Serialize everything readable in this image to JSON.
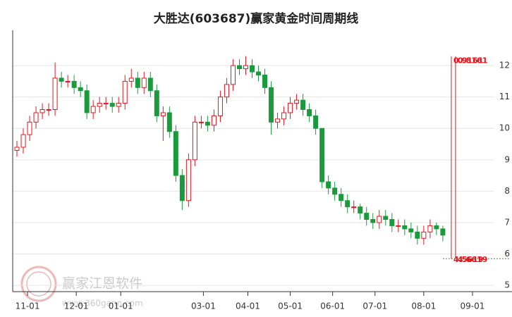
{
  "chart_data": {
    "type": "candlestick",
    "title": "大胜达(603687)赢家黄金时间周期线",
    "x": [
      0,
      3,
      6,
      9,
      12,
      15,
      18,
      21,
      24,
      27,
      30,
      33,
      36,
      39,
      42,
      45,
      48,
      51,
      54,
      57,
      60,
      63,
      66,
      69,
      72,
      75,
      78,
      81,
      84,
      87,
      90,
      93,
      96,
      99,
      102,
      105,
      108,
      111,
      114,
      117,
      120,
      123,
      126,
      129,
      132,
      135,
      138,
      141,
      144,
      147,
      150,
      153,
      156,
      159,
      162,
      165,
      168,
      171,
      174,
      177,
      180,
      183,
      186,
      189,
      192,
      195,
      198,
      201
    ],
    "open": [
      9.3,
      9.4,
      9.8,
      10.2,
      10.5,
      10.6,
      10.6,
      11.6,
      11.5,
      11.5,
      11.3,
      11.2,
      10.5,
      10.7,
      10.8,
      10.8,
      10.7,
      10.8,
      11.5,
      11.6,
      11.3,
      11.6,
      11.2,
      10.4,
      10.5,
      9.9,
      8.5,
      7.7,
      9.0,
      10.2,
      10.2,
      10.1,
      10.4,
      11.0,
      11.4,
      12.0,
      11.9,
      12.0,
      11.8,
      11.7,
      11.3,
      10.2,
      10.3,
      10.5,
      10.8,
      10.9,
      10.6,
      10.4,
      10.0,
      8.3,
      8.1,
      7.9,
      7.7,
      7.5,
      7.5,
      7.3,
      7.1,
      7.0,
      7.2,
      7.1,
      6.9,
      6.9,
      6.8,
      6.7,
      6.5,
      6.7,
      6.9,
      6.8
    ],
    "high": [
      9.6,
      10.0,
      10.4,
      10.7,
      10.8,
      10.8,
      12.1,
      11.8,
      11.7,
      11.7,
      11.5,
      11.4,
      10.9,
      11.0,
      11.0,
      11.0,
      11.0,
      11.7,
      11.9,
      11.8,
      11.8,
      11.8,
      11.4,
      10.7,
      10.7,
      10.1,
      8.7,
      9.2,
      10.4,
      10.4,
      10.4,
      10.6,
      11.2,
      11.6,
      12.2,
      12.2,
      12.3,
      12.2,
      12.0,
      11.9,
      11.5,
      10.5,
      10.7,
      11.0,
      11.1,
      11.1,
      10.8,
      10.6,
      10.0,
      8.5,
      8.3,
      8.1,
      7.9,
      7.7,
      7.6,
      7.5,
      7.3,
      7.4,
      7.4,
      7.3,
      7.1,
      7.1,
      7.0,
      6.9,
      6.9,
      7.1,
      7.0,
      6.9
    ],
    "low": [
      9.1,
      9.2,
      9.6,
      10.0,
      10.3,
      10.4,
      10.4,
      11.3,
      11.3,
      11.1,
      11.0,
      10.3,
      10.3,
      10.5,
      10.6,
      10.5,
      10.5,
      10.6,
      11.3,
      11.1,
      11.1,
      11.0,
      10.2,
      9.6,
      9.7,
      8.3,
      7.4,
      7.5,
      8.8,
      10.0,
      9.9,
      9.9,
      10.2,
      10.8,
      11.2,
      11.7,
      11.7,
      11.6,
      11.5,
      11.1,
      9.8,
      10.0,
      10.1,
      10.3,
      10.6,
      10.4,
      10.2,
      9.8,
      8.1,
      7.9,
      7.7,
      7.5,
      7.3,
      7.3,
      7.1,
      6.9,
      6.8,
      6.8,
      6.9,
      6.7,
      6.7,
      6.6,
      6.5,
      6.3,
      6.3,
      6.5,
      6.6,
      6.4
    ],
    "close": [
      9.4,
      9.8,
      10.2,
      10.5,
      10.6,
      10.6,
      11.6,
      11.5,
      11.5,
      11.3,
      11.2,
      10.5,
      10.7,
      10.8,
      10.8,
      10.7,
      10.8,
      11.5,
      11.6,
      11.3,
      11.6,
      11.2,
      10.4,
      10.5,
      9.9,
      8.5,
      7.7,
      9.0,
      10.2,
      10.2,
      10.1,
      10.4,
      11.0,
      11.4,
      12.0,
      11.9,
      12.0,
      11.8,
      11.7,
      11.3,
      10.2,
      10.3,
      10.5,
      10.8,
      10.9,
      10.6,
      10.4,
      10.0,
      8.3,
      8.1,
      7.9,
      7.7,
      7.5,
      7.5,
      7.3,
      7.1,
      7.0,
      7.2,
      7.1,
      6.9,
      6.9,
      6.8,
      6.7,
      6.5,
      6.7,
      6.9,
      6.8,
      6.6
    ],
    "up_color": "#e8141b",
    "down_color": "#1a9a3c",
    "xlim": [
      -2,
      225
    ],
    "ylim": [
      4.8,
      12.9
    ],
    "xticks": [
      {
        "value": 5,
        "label": "11-01"
      },
      {
        "value": 28,
        "label": "12-01"
      },
      {
        "value": 49,
        "label": "01-01"
      },
      {
        "value": 88,
        "label": "03-01"
      },
      {
        "value": 109,
        "label": "04-01"
      },
      {
        "value": 129,
        "label": "05-01"
      },
      {
        "value": 149,
        "label": "06-01"
      },
      {
        "value": 169,
        "label": "07-01"
      },
      {
        "value": 192,
        "label": "08-01"
      },
      {
        "value": 215,
        "label": "09-01"
      }
    ],
    "yticks": [
      5,
      6,
      7,
      8,
      9,
      10,
      11,
      12
    ],
    "grid": true,
    "cycle_lines": [
      {
        "x": 205,
        "top": 12.3,
        "bottom": 5.85,
        "top_label": "0.9161",
        "bottom_label": "4.5619",
        "color": "#e8141b"
      },
      {
        "x": 207,
        "top": 12.3,
        "bottom": 5.85,
        "top_label": "0.8161",
        "bottom_label": "4.6619",
        "color": "#e8141b"
      }
    ],
    "support_line": {
      "value": 5.85,
      "x_start": 201,
      "color": "#1a9a3c"
    },
    "watermark": {
      "name": "赢家江恩软件",
      "url": "www.360gann.com"
    }
  }
}
